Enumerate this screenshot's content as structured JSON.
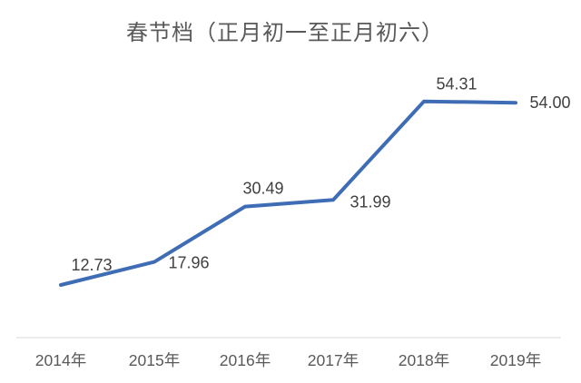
{
  "page": {
    "background": "#ffffff"
  },
  "chart_data": {
    "type": "line",
    "title": "春节档（正月初一至正月初六）",
    "categories": [
      "2014年",
      "2015年",
      "2016年",
      "2017年",
      "2018年",
      "2019年"
    ],
    "series": [
      {
        "values": [
          12.73,
          17.96,
          30.49,
          31.99,
          54.31,
          54.0
        ],
        "value_labels": [
          "12.73",
          "17.96",
          "30.49",
          "31.99",
          "54.31",
          "54.00"
        ]
      }
    ],
    "xlabel": "",
    "ylabel": "",
    "ylim": [
      0,
      60
    ],
    "grid": "off",
    "legend": "none",
    "colors": {
      "line": "#3e6cb5",
      "axis_line": "#e0e0e0",
      "title_text": "#595959",
      "data_label_text": "#404040",
      "axis_label_text": "#595959"
    }
  }
}
